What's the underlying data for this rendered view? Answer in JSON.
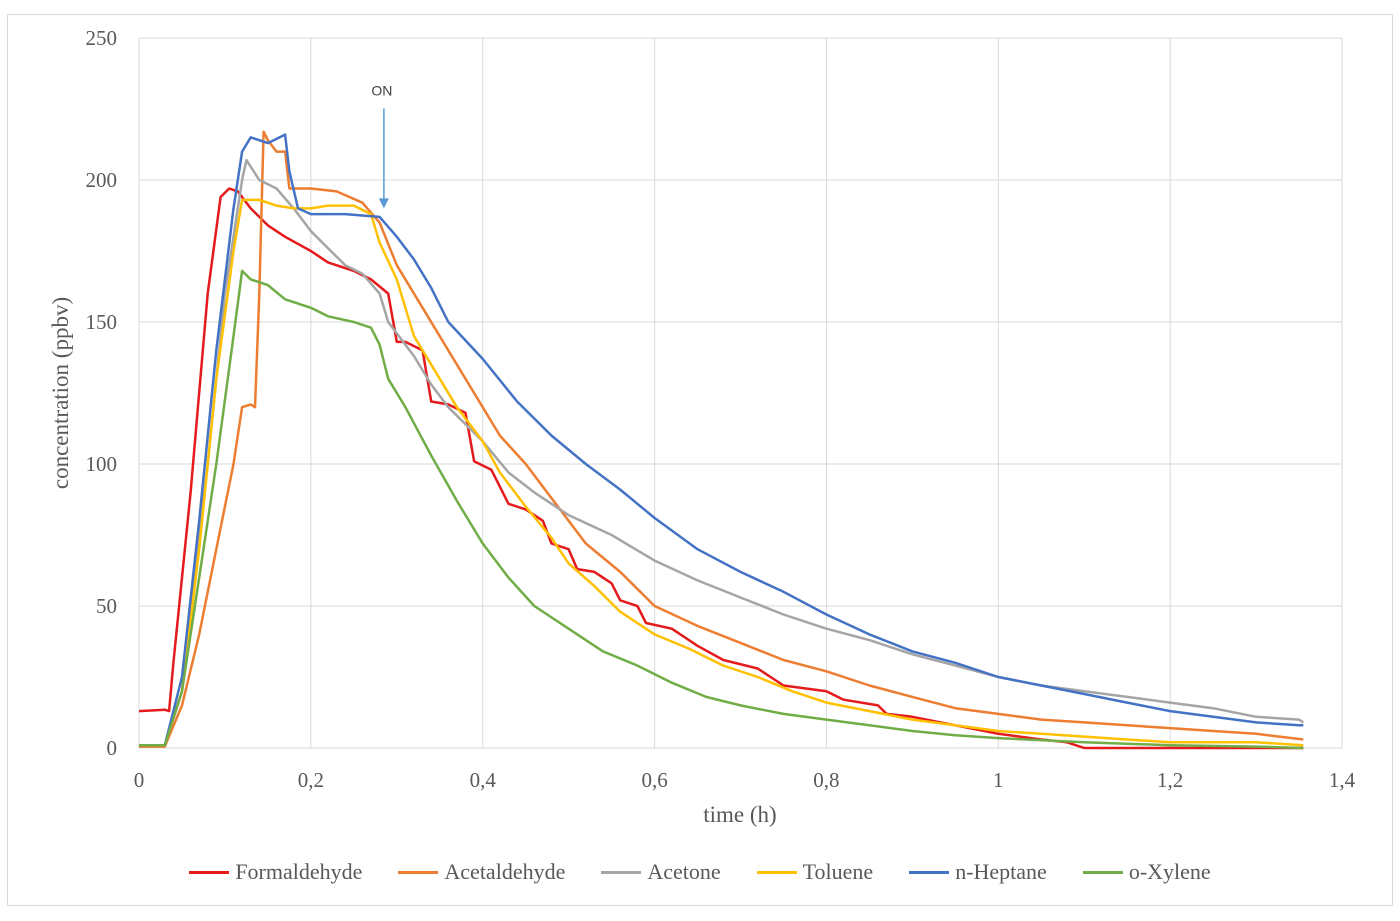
{
  "chart_data": {
    "type": "line",
    "title": "",
    "xlabel": "time (h)",
    "ylabel": "concentration (ppbv)",
    "xlim": [
      0,
      1.4
    ],
    "ylim": [
      0,
      250
    ],
    "x_ticks": [
      0,
      0.2,
      0.4,
      0.6,
      0.8,
      1,
      1.2,
      1.4
    ],
    "x_tick_labels": [
      "0",
      "0,2",
      "0,4",
      "0,6",
      "0,8",
      "1",
      "1,2",
      "1,4"
    ],
    "y_ticks": [
      0,
      50,
      100,
      150,
      200,
      250
    ],
    "y_tick_labels": [
      "0",
      "50",
      "100",
      "150",
      "200",
      "250"
    ],
    "grid": true,
    "legend_position": "bottom",
    "annotations": [
      {
        "text": "ON",
        "x": 0.285,
        "y": 190
      }
    ],
    "series": [
      {
        "name": "Formaldehyde",
        "color": "#e41a1c",
        "points": [
          [
            0,
            13
          ],
          [
            0.03,
            13.5
          ],
          [
            0.035,
            13
          ],
          [
            0.04,
            30
          ],
          [
            0.06,
            90
          ],
          [
            0.08,
            160
          ],
          [
            0.095,
            194
          ],
          [
            0.105,
            197
          ],
          [
            0.115,
            196
          ],
          [
            0.13,
            190
          ],
          [
            0.15,
            184
          ],
          [
            0.17,
            180
          ],
          [
            0.2,
            175
          ],
          [
            0.22,
            171
          ],
          [
            0.25,
            168
          ],
          [
            0.27,
            165
          ],
          [
            0.29,
            160
          ],
          [
            0.3,
            143
          ],
          [
            0.31,
            143
          ],
          [
            0.33,
            140
          ],
          [
            0.34,
            122
          ],
          [
            0.36,
            121
          ],
          [
            0.38,
            118
          ],
          [
            0.39,
            101
          ],
          [
            0.41,
            98
          ],
          [
            0.43,
            86
          ],
          [
            0.45,
            84
          ],
          [
            0.47,
            80
          ],
          [
            0.48,
            72
          ],
          [
            0.5,
            70
          ],
          [
            0.51,
            63
          ],
          [
            0.53,
            62
          ],
          [
            0.55,
            58
          ],
          [
            0.56,
            52
          ],
          [
            0.58,
            50
          ],
          [
            0.59,
            44
          ],
          [
            0.62,
            42
          ],
          [
            0.65,
            36
          ],
          [
            0.68,
            31
          ],
          [
            0.72,
            28
          ],
          [
            0.75,
            22
          ],
          [
            0.8,
            20
          ],
          [
            0.82,
            17
          ],
          [
            0.86,
            15
          ],
          [
            0.87,
            12
          ],
          [
            0.9,
            11
          ],
          [
            0.95,
            8
          ],
          [
            1.0,
            5
          ],
          [
            1.05,
            3
          ],
          [
            1.08,
            2
          ],
          [
            1.1,
            0
          ],
          [
            1.355,
            0
          ]
        ]
      },
      {
        "name": "Acetaldehyde",
        "color": "#ed7d31",
        "points": [
          [
            0,
            0.5
          ],
          [
            0.03,
            0.5
          ],
          [
            0.05,
            15
          ],
          [
            0.07,
            40
          ],
          [
            0.09,
            70
          ],
          [
            0.11,
            100
          ],
          [
            0.12,
            120
          ],
          [
            0.13,
            121
          ],
          [
            0.135,
            120
          ],
          [
            0.14,
            160
          ],
          [
            0.145,
            217
          ],
          [
            0.15,
            214
          ],
          [
            0.16,
            210
          ],
          [
            0.17,
            210
          ],
          [
            0.175,
            197
          ],
          [
            0.2,
            197
          ],
          [
            0.23,
            196
          ],
          [
            0.26,
            192
          ],
          [
            0.28,
            185
          ],
          [
            0.3,
            170
          ],
          [
            0.33,
            155
          ],
          [
            0.36,
            140
          ],
          [
            0.39,
            125
          ],
          [
            0.42,
            110
          ],
          [
            0.45,
            100
          ],
          [
            0.48,
            88
          ],
          [
            0.52,
            72
          ],
          [
            0.56,
            62
          ],
          [
            0.6,
            50
          ],
          [
            0.65,
            43
          ],
          [
            0.7,
            37
          ],
          [
            0.75,
            31
          ],
          [
            0.8,
            27
          ],
          [
            0.85,
            22
          ],
          [
            0.9,
            18
          ],
          [
            0.95,
            14
          ],
          [
            1.0,
            12
          ],
          [
            1.05,
            10
          ],
          [
            1.1,
            9
          ],
          [
            1.15,
            8
          ],
          [
            1.2,
            7
          ],
          [
            1.25,
            6
          ],
          [
            1.3,
            5
          ],
          [
            1.355,
            3
          ]
        ]
      },
      {
        "name": "Acetone",
        "color": "#a5a5a5",
        "points": [
          [
            0,
            1
          ],
          [
            0.03,
            1
          ],
          [
            0.05,
            20
          ],
          [
            0.08,
            100
          ],
          [
            0.1,
            160
          ],
          [
            0.12,
            200
          ],
          [
            0.125,
            207
          ],
          [
            0.14,
            200
          ],
          [
            0.16,
            197
          ],
          [
            0.18,
            190
          ],
          [
            0.2,
            182
          ],
          [
            0.22,
            176
          ],
          [
            0.24,
            170
          ],
          [
            0.26,
            167
          ],
          [
            0.28,
            160
          ],
          [
            0.29,
            150
          ],
          [
            0.3,
            146
          ],
          [
            0.32,
            138
          ],
          [
            0.34,
            128
          ],
          [
            0.36,
            120
          ],
          [
            0.38,
            114
          ],
          [
            0.4,
            108
          ],
          [
            0.43,
            97
          ],
          [
            0.46,
            90
          ],
          [
            0.5,
            82
          ],
          [
            0.55,
            75
          ],
          [
            0.6,
            66
          ],
          [
            0.65,
            59
          ],
          [
            0.7,
            53
          ],
          [
            0.75,
            47
          ],
          [
            0.8,
            42
          ],
          [
            0.85,
            38
          ],
          [
            0.9,
            33
          ],
          [
            0.95,
            29
          ],
          [
            1.0,
            25
          ],
          [
            1.05,
            22
          ],
          [
            1.1,
            20
          ],
          [
            1.15,
            18
          ],
          [
            1.2,
            16
          ],
          [
            1.25,
            14
          ],
          [
            1.3,
            11
          ],
          [
            1.35,
            10
          ],
          [
            1.355,
            9
          ]
        ]
      },
      {
        "name": "Toluene",
        "color": "#ffc000",
        "points": [
          [
            0,
            1
          ],
          [
            0.03,
            1
          ],
          [
            0.05,
            20
          ],
          [
            0.07,
            70
          ],
          [
            0.09,
            130
          ],
          [
            0.11,
            175
          ],
          [
            0.12,
            193
          ],
          [
            0.14,
            193
          ],
          [
            0.16,
            191
          ],
          [
            0.18,
            190
          ],
          [
            0.2,
            190
          ],
          [
            0.22,
            191
          ],
          [
            0.25,
            191
          ],
          [
            0.27,
            188
          ],
          [
            0.28,
            178
          ],
          [
            0.3,
            165
          ],
          [
            0.32,
            145
          ],
          [
            0.35,
            130
          ],
          [
            0.37,
            120
          ],
          [
            0.4,
            108
          ],
          [
            0.42,
            97
          ],
          [
            0.45,
            85
          ],
          [
            0.48,
            74
          ],
          [
            0.5,
            65
          ],
          [
            0.53,
            57
          ],
          [
            0.56,
            48
          ],
          [
            0.6,
            40
          ],
          [
            0.64,
            35
          ],
          [
            0.68,
            29
          ],
          [
            0.72,
            25
          ],
          [
            0.76,
            20
          ],
          [
            0.8,
            16
          ],
          [
            0.85,
            13
          ],
          [
            0.9,
            10
          ],
          [
            0.95,
            8
          ],
          [
            1.0,
            6
          ],
          [
            1.05,
            5
          ],
          [
            1.1,
            4
          ],
          [
            1.15,
            3
          ],
          [
            1.2,
            2
          ],
          [
            1.3,
            2
          ],
          [
            1.355,
            1
          ]
        ]
      },
      {
        "name": "n-Heptane",
        "color": "#4472c4",
        "points": [
          [
            0,
            1
          ],
          [
            0.03,
            1
          ],
          [
            0.05,
            25
          ],
          [
            0.07,
            80
          ],
          [
            0.09,
            140
          ],
          [
            0.11,
            190
          ],
          [
            0.12,
            210
          ],
          [
            0.13,
            215
          ],
          [
            0.15,
            213
          ],
          [
            0.17,
            216
          ],
          [
            0.175,
            203
          ],
          [
            0.185,
            190
          ],
          [
            0.2,
            188
          ],
          [
            0.24,
            188
          ],
          [
            0.28,
            187
          ],
          [
            0.3,
            180
          ],
          [
            0.32,
            172
          ],
          [
            0.34,
            162
          ],
          [
            0.36,
            150
          ],
          [
            0.4,
            137
          ],
          [
            0.44,
            122
          ],
          [
            0.48,
            110
          ],
          [
            0.52,
            100
          ],
          [
            0.56,
            91
          ],
          [
            0.6,
            81
          ],
          [
            0.65,
            70
          ],
          [
            0.7,
            62
          ],
          [
            0.75,
            55
          ],
          [
            0.8,
            47
          ],
          [
            0.85,
            40
          ],
          [
            0.9,
            34
          ],
          [
            0.95,
            30
          ],
          [
            1.0,
            25
          ],
          [
            1.05,
            22
          ],
          [
            1.1,
            19
          ],
          [
            1.15,
            16
          ],
          [
            1.2,
            13
          ],
          [
            1.25,
            11
          ],
          [
            1.3,
            9
          ],
          [
            1.35,
            8
          ],
          [
            1.355,
            8
          ]
        ]
      },
      {
        "name": "o-Xylene",
        "color": "#70ad47",
        "points": [
          [
            0,
            1
          ],
          [
            0.03,
            1
          ],
          [
            0.05,
            20
          ],
          [
            0.07,
            60
          ],
          [
            0.09,
            100
          ],
          [
            0.11,
            145
          ],
          [
            0.12,
            168
          ],
          [
            0.13,
            165
          ],
          [
            0.15,
            163
          ],
          [
            0.17,
            158
          ],
          [
            0.2,
            155
          ],
          [
            0.22,
            152
          ],
          [
            0.25,
            150
          ],
          [
            0.27,
            148
          ],
          [
            0.28,
            142
          ],
          [
            0.29,
            130
          ],
          [
            0.31,
            120
          ],
          [
            0.34,
            103
          ],
          [
            0.37,
            87
          ],
          [
            0.4,
            72
          ],
          [
            0.43,
            60
          ],
          [
            0.46,
            50
          ],
          [
            0.5,
            42
          ],
          [
            0.54,
            34
          ],
          [
            0.58,
            29
          ],
          [
            0.62,
            23
          ],
          [
            0.66,
            18
          ],
          [
            0.7,
            15
          ],
          [
            0.75,
            12
          ],
          [
            0.8,
            10
          ],
          [
            0.85,
            8
          ],
          [
            0.9,
            6
          ],
          [
            0.95,
            4.5
          ],
          [
            1.0,
            3.5
          ],
          [
            1.1,
            2
          ],
          [
            1.2,
            1
          ],
          [
            1.3,
            0.5
          ],
          [
            1.355,
            0
          ]
        ]
      }
    ]
  }
}
